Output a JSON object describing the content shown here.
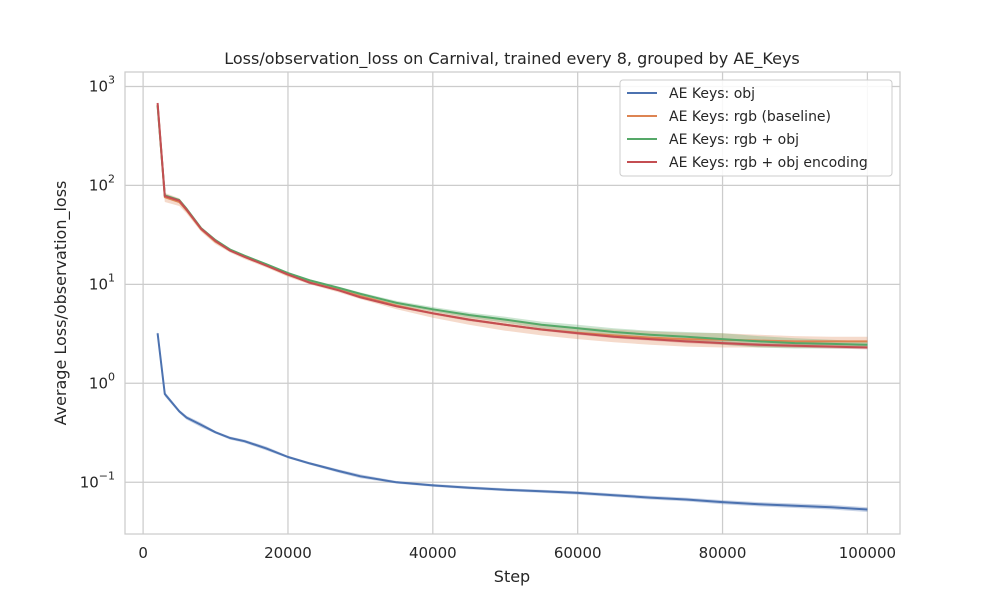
{
  "chart_data": {
    "type": "line",
    "title": "Loss/observation_loss on Carnival, trained every 8, grouped by AE_Keys",
    "xlabel": "Step",
    "ylabel": "Average Loss/observation_loss",
    "xlim": [
      -2500,
      104500
    ],
    "ylim": [
      0.03,
      1400
    ],
    "yscale": "log",
    "xticks": [
      0,
      20000,
      40000,
      60000,
      80000,
      100000
    ],
    "xtick_labels": [
      "0",
      "20000",
      "40000",
      "60000",
      "80000",
      "100000"
    ],
    "yticks": [
      0.1,
      1,
      10,
      100,
      1000
    ],
    "ytick_labels": [
      {
        "base": "10",
        "exp": "−1"
      },
      {
        "base": "10",
        "exp": "0"
      },
      {
        "base": "10",
        "exp": "1"
      },
      {
        "base": "10",
        "exp": "2"
      },
      {
        "base": "10",
        "exp": "3"
      }
    ],
    "grid": true,
    "legend_position": "top-right",
    "x": [
      2000,
      3000,
      5000,
      6000,
      8000,
      10000,
      12000,
      14000,
      17000,
      20000,
      23000,
      27000,
      30000,
      35000,
      40000,
      45000,
      50000,
      55000,
      60000,
      65000,
      70000,
      75000,
      80000,
      85000,
      90000,
      95000,
      100000
    ],
    "series": [
      {
        "name": "AE Keys: obj",
        "color": "#4c72b0",
        "values": [
          3.2,
          0.78,
          0.52,
          0.45,
          0.38,
          0.32,
          0.28,
          0.26,
          0.22,
          0.18,
          0.155,
          0.13,
          0.115,
          0.1,
          0.093,
          0.088,
          0.084,
          0.081,
          0.078,
          0.074,
          0.07,
          0.067,
          0.063,
          0.06,
          0.058,
          0.056,
          0.053
        ],
        "lower": [
          3.0,
          0.74,
          0.5,
          0.43,
          0.36,
          0.31,
          0.27,
          0.25,
          0.21,
          0.175,
          0.15,
          0.125,
          0.11,
          0.097,
          0.09,
          0.085,
          0.081,
          0.078,
          0.075,
          0.071,
          0.067,
          0.064,
          0.06,
          0.057,
          0.055,
          0.053,
          0.05
        ],
        "upper": [
          3.4,
          0.82,
          0.54,
          0.47,
          0.4,
          0.33,
          0.29,
          0.27,
          0.23,
          0.185,
          0.16,
          0.135,
          0.12,
          0.103,
          0.096,
          0.091,
          0.087,
          0.084,
          0.081,
          0.077,
          0.073,
          0.07,
          0.066,
          0.063,
          0.061,
          0.059,
          0.056
        ]
      },
      {
        "name": "AE Keys: rgb (baseline)",
        "color": "#dd8452",
        "values": [
          650,
          76,
          68,
          56,
          36,
          27,
          22,
          19,
          15.5,
          12.5,
          10.5,
          8.8,
          7.6,
          6.1,
          5.1,
          4.4,
          3.9,
          3.5,
          3.25,
          3.05,
          2.9,
          2.8,
          2.75,
          2.7,
          2.65,
          2.65,
          2.65
        ],
        "lower": [
          600,
          68,
          62,
          52,
          34,
          25.5,
          21,
          18,
          14.8,
          11.9,
          10,
          8.3,
          7.1,
          5.6,
          4.6,
          3.9,
          3.4,
          3.05,
          2.8,
          2.6,
          2.45,
          2.35,
          2.3,
          2.3,
          2.3,
          2.3,
          2.3
        ],
        "upper": [
          700,
          84,
          74,
          60,
          38,
          28.5,
          23,
          20,
          16.2,
          13.1,
          11,
          9.3,
          8.1,
          6.6,
          5.6,
          4.9,
          4.4,
          3.95,
          3.7,
          3.5,
          3.35,
          3.25,
          3.2,
          3.1,
          3.0,
          2.95,
          2.95
        ]
      },
      {
        "name": "AE Keys: rgb + obj",
        "color": "#55a868",
        "values": [
          640,
          79,
          71,
          58,
          37,
          28,
          22.5,
          19.5,
          16,
          13,
          11,
          9.2,
          8,
          6.5,
          5.6,
          4.9,
          4.4,
          3.9,
          3.6,
          3.3,
          3.1,
          2.95,
          2.8,
          2.65,
          2.55,
          2.5,
          2.45
        ],
        "lower": [
          620,
          76,
          69,
          56,
          36,
          27.3,
          21.9,
          19,
          15.6,
          12.7,
          10.7,
          8.9,
          7.7,
          6.2,
          5.3,
          4.6,
          4.1,
          3.6,
          3.3,
          3.0,
          2.8,
          2.65,
          2.45,
          2.3,
          2.25,
          2.25,
          2.25
        ],
        "upper": [
          660,
          82,
          73,
          60,
          38,
          28.7,
          23.1,
          20,
          16.4,
          13.3,
          11.3,
          9.5,
          8.3,
          6.8,
          5.9,
          5.2,
          4.7,
          4.2,
          3.9,
          3.6,
          3.4,
          3.3,
          3.2,
          3.0,
          2.85,
          2.75,
          2.65
        ]
      },
      {
        "name": "AE Keys: rgb + obj encoding",
        "color": "#c44e52",
        "values": [
          680,
          78,
          70,
          57,
          36.5,
          27.5,
          22,
          19,
          15.5,
          12.6,
          10.4,
          8.7,
          7.4,
          6.0,
          5.1,
          4.4,
          3.9,
          3.5,
          3.2,
          2.95,
          2.8,
          2.65,
          2.55,
          2.45,
          2.4,
          2.35,
          2.3
        ],
        "lower": [
          660,
          76,
          68,
          55.5,
          35.5,
          26.8,
          21.4,
          18.5,
          15.1,
          12.3,
          10.1,
          8.5,
          7.2,
          5.85,
          4.95,
          4.25,
          3.8,
          3.4,
          3.1,
          2.85,
          2.7,
          2.55,
          2.45,
          2.35,
          2.3,
          2.25,
          2.2
        ],
        "upper": [
          700,
          80,
          72,
          58.5,
          37.5,
          28.2,
          22.6,
          19.5,
          15.9,
          12.9,
          10.7,
          8.9,
          7.6,
          6.15,
          5.25,
          4.55,
          4.0,
          3.6,
          3.3,
          3.05,
          2.9,
          2.75,
          2.65,
          2.55,
          2.5,
          2.45,
          2.4
        ]
      }
    ]
  }
}
